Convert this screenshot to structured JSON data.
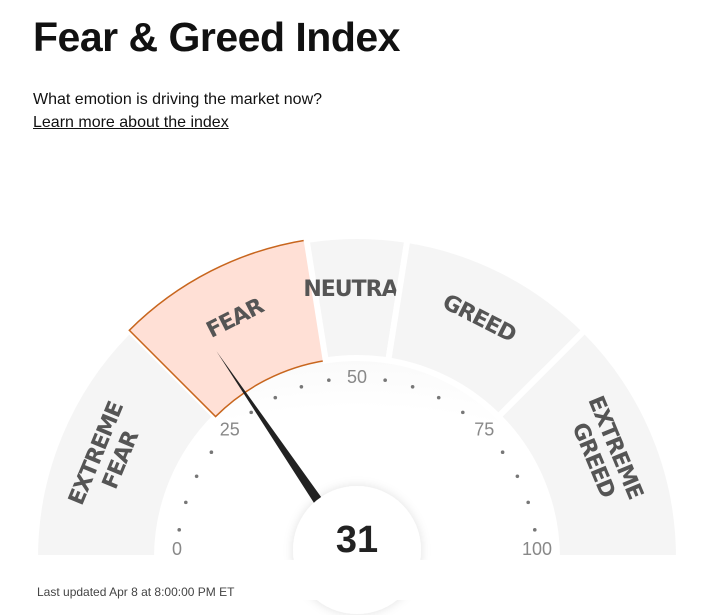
{
  "chart_data": {
    "type": "gauge",
    "title": "Fear & Greed Index",
    "subtitle": "What emotion is driving the market now?",
    "link": "Learn more about the index",
    "footer": "Last updated Apr 8 at 8:00:00 PM ET",
    "lim": [
      0,
      100
    ],
    "ticks": [
      0,
      25,
      50,
      75,
      100
    ],
    "minor_ticks": [
      5,
      10,
      15,
      20,
      30,
      35,
      40,
      45,
      55,
      60,
      65,
      70,
      80,
      85,
      90,
      95
    ],
    "segments": [
      {
        "label": "EXTREME FEAR",
        "from": 0,
        "to": 25
      },
      {
        "label": "FEAR",
        "from": 25,
        "to": 45
      },
      {
        "label": "NEUTRAL",
        "from": 45,
        "to": 55
      },
      {
        "label": "GREED",
        "from": 55,
        "to": 75
      },
      {
        "label": "EXTREME GREED",
        "from": 75,
        "to": 100
      }
    ],
    "value": 31,
    "color": "#f5f5f5",
    "highlight_color": "#ffe0d6",
    "highlight_stroke": "#c8661e",
    "needle_color": "#222"
  }
}
